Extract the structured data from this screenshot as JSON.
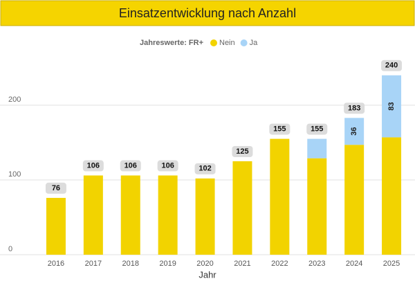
{
  "chart_data": {
    "type": "stacked_bar",
    "title": "Einsatzentwicklung nach Anzahl",
    "legend_title": "Jahreswerte: FR+",
    "x_label": "Jahr",
    "categories": [
      "2016",
      "2017",
      "2018",
      "2019",
      "2020",
      "2021",
      "2022",
      "2023",
      "2024",
      "2025"
    ],
    "series": [
      {
        "name": "Nein",
        "color": "#f2d300",
        "values": [
          76,
          106,
          106,
          106,
          102,
          125,
          155,
          129,
          147,
          157
        ]
      },
      {
        "name": "Ja",
        "color": "#a8d4f7",
        "values": [
          0,
          0,
          0,
          0,
          0,
          0,
          0,
          26,
          36,
          83
        ],
        "value_labels": [
          null,
          null,
          null,
          null,
          null,
          null,
          null,
          null,
          "36",
          "83"
        ]
      }
    ],
    "totals": [
      76,
      106,
      106,
      106,
      102,
      125,
      155,
      155,
      183,
      240
    ],
    "ylim": [
      0,
      250
    ],
    "yticks": [
      0,
      100,
      200
    ],
    "grid": true,
    "legend": "top"
  }
}
